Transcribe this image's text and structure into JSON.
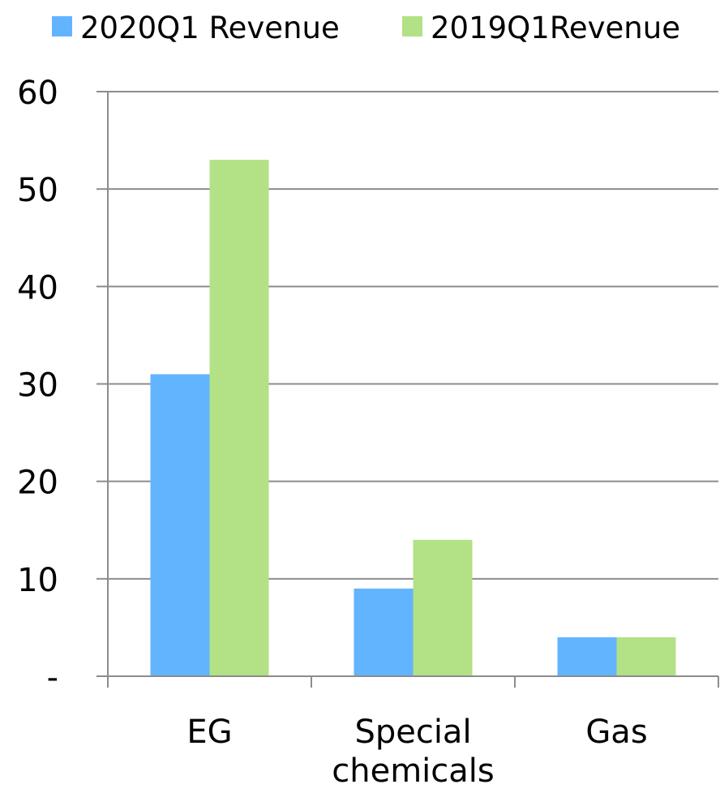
{
  "chart_data": {
    "type": "bar",
    "title": "",
    "xlabel": "",
    "ylabel": "",
    "categories": [
      [
        "EG"
      ],
      [
        "Special",
        "chemicals"
      ],
      [
        "Gas"
      ]
    ],
    "series": [
      {
        "name": "2020Q1 Revenue",
        "color": "#63b4ff",
        "values": [
          31,
          9,
          4
        ]
      },
      {
        "name": "2019Q1Revenue",
        "color": "#b3e186",
        "values": [
          53,
          14,
          4
        ]
      }
    ],
    "ylim": [
      0,
      60
    ],
    "yticks": [
      {
        "value": 60,
        "label": "60"
      },
      {
        "value": 50,
        "label": "50"
      },
      {
        "value": 40,
        "label": "40"
      },
      {
        "value": 30,
        "label": "30"
      },
      {
        "value": 20,
        "label": "20"
      },
      {
        "value": 10,
        "label": "10"
      },
      {
        "value": 0,
        "label": "-"
      }
    ],
    "grid": true,
    "legend_position": "top",
    "colors": {
      "axis": "#8c8c8c",
      "grid": "#8c8c8c",
      "text": "#000000",
      "background": "#ffffff"
    }
  }
}
